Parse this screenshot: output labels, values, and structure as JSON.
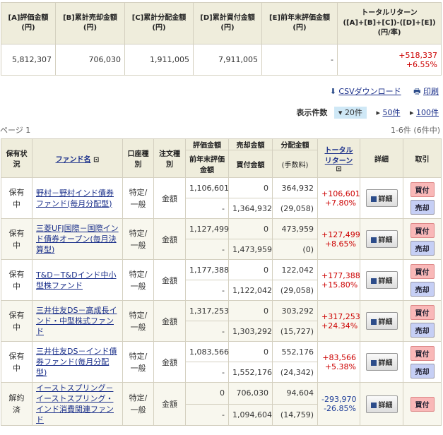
{
  "summary": {
    "headers": [
      "[A]評価金額\n(円)",
      "[B]累計売却金額\n(円)",
      "[C]累計分配金額\n(円)",
      "[D]累計買付金額\n(円)",
      "[E]前年末評価金額\n(円)",
      "トータルリターン\n([A]+[B]+[C])-([D]+[E])\n(円/率)"
    ],
    "values": [
      "5,812,307",
      "706,030",
      "1,911,005",
      "7,911,005",
      "-"
    ],
    "total_return": "+518,337",
    "total_rate": "+6.55%"
  },
  "toolbar": {
    "csv": "CSVダウンロード",
    "print": "印刷"
  },
  "counts": {
    "label": "表示件数",
    "selected": "20件",
    "options": [
      "50件",
      "100件"
    ]
  },
  "page": "ページ 1",
  "range": "1-6件 (6件中)",
  "headers": {
    "status": "保有状況",
    "fund": "ファンド名",
    "account": "口座種別",
    "order": "注文種別",
    "eval": "評価金額",
    "prev": "前年末評価金額",
    "sold": "売却金額",
    "bought": "買付金額",
    "dist": "分配金額",
    "fee": "(手数料)",
    "tr": "トータルリターン",
    "detail": "詳細",
    "trade": "取引"
  },
  "labels": {
    "detail": "詳細",
    "buy": "買付",
    "sell": "売却"
  },
  "rows": [
    {
      "status": "保有中",
      "fund": "野村－野村インド債券ファンド(毎月分配型)",
      "account": "特定/一般",
      "order": "金額",
      "eval": "1,106,601",
      "prev": "-",
      "sold": "0",
      "bought": "1,364,932",
      "dist": "364,932",
      "fee": "(29,058)",
      "tr": "+106,601",
      "rate": "+7.80%",
      "sell": true
    },
    {
      "status": "保有中",
      "fund": "三菱UFJ国際－国際インド債券オープン(毎月決算型)",
      "account": "特定/一般",
      "order": "金額",
      "eval": "1,127,499",
      "prev": "-",
      "sold": "0",
      "bought": "1,473,959",
      "dist": "473,959",
      "fee": "(0)",
      "tr": "+127,499",
      "rate": "+8.65%",
      "sell": true
    },
    {
      "status": "保有中",
      "fund": "T&D－T&Dインド中小型株ファンド",
      "account": "特定/一般",
      "order": "金額",
      "eval": "1,177,388",
      "prev": "-",
      "sold": "0",
      "bought": "1,122,042",
      "dist": "122,042",
      "fee": "(29,058)",
      "tr": "+177,388",
      "rate": "+15.80%",
      "sell": true
    },
    {
      "status": "保有中",
      "fund": "三井住友DS－高成長インド・中型株式ファンド",
      "account": "特定/一般",
      "order": "金額",
      "eval": "1,317,253",
      "prev": "-",
      "sold": "0",
      "bought": "1,303,292",
      "dist": "303,292",
      "fee": "(15,727)",
      "tr": "+317,253",
      "rate": "+24.34%",
      "sell": true
    },
    {
      "status": "保有中",
      "fund": "三井住友DS－インド債券ファンド(毎月分配型)",
      "account": "特定/一般",
      "order": "金額",
      "eval": "1,083,566",
      "prev": "-",
      "sold": "0",
      "bought": "1,552,176",
      "dist": "552,176",
      "fee": "(24,342)",
      "tr": "+83,566",
      "rate": "+5.38%",
      "sell": true
    },
    {
      "status": "解約済",
      "fund": "イーストスプリング－イーストスプリング・インド消費関連ファンド",
      "account": "特定/一般",
      "order": "金額",
      "eval": "0",
      "prev": "-",
      "sold": "706,030",
      "bought": "1,094,604",
      "dist": "94,604",
      "fee": "(14,759)",
      "tr": "-293,970",
      "rate": "-26.85%",
      "sell": false
    }
  ]
}
